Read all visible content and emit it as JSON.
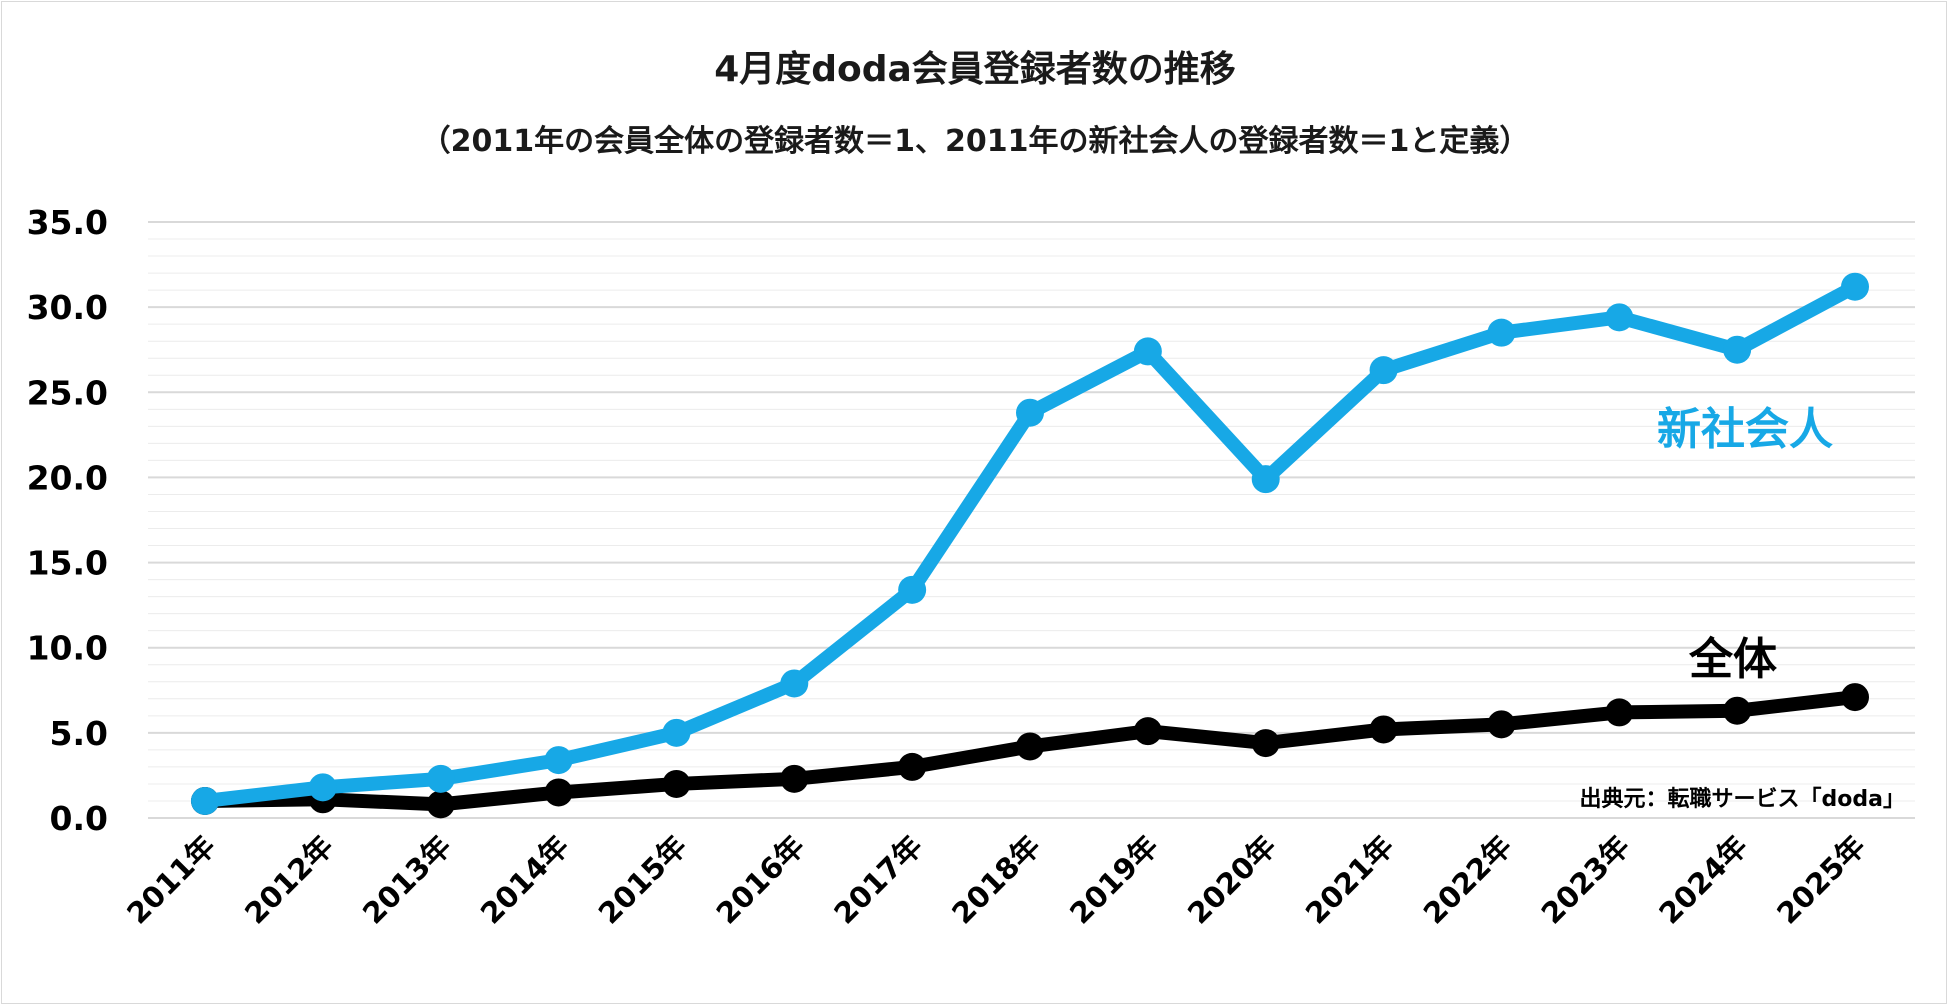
{
  "title": "4月度doda会員登録者数の推移",
  "subtitle": "（2011年の会員全体の登録者数＝1、2011年の新社会人の登録者数＝1と定義）",
  "source_note": "出典元：転職サービス「doda」",
  "colors": {
    "new_grads": "#17a8e6",
    "all": "#000000",
    "grid": "#d9d9d9",
    "minor_grid": "#ececec"
  },
  "chart_data": {
    "type": "line",
    "title": "4月度doda会員登録者数の推移",
    "subtitle": "（2011年の会員全体の登録者数＝1、2011年の新社会人の登録者数＝1と定義）",
    "categories": [
      "2011年",
      "2012年",
      "2013年",
      "2014年",
      "2015年",
      "2016年",
      "2017年",
      "2018年",
      "2019年",
      "2020年",
      "2021年",
      "2022年",
      "2023年",
      "2024年",
      "2025年"
    ],
    "series": [
      {
        "name": "新社会人",
        "color": "#17a8e6",
        "values": [
          1.0,
          1.8,
          2.3,
          3.4,
          5.0,
          7.9,
          13.4,
          23.8,
          27.4,
          19.9,
          26.3,
          28.5,
          29.4,
          27.5,
          31.2
        ]
      },
      {
        "name": "全体",
        "color": "#000000",
        "values": [
          1.0,
          1.1,
          0.8,
          1.5,
          2.0,
          2.3,
          3.0,
          4.2,
          5.1,
          4.4,
          5.2,
          5.5,
          6.2,
          6.3,
          7.1
        ]
      }
    ],
    "y_ticks": [
      "0.0",
      "5.0",
      "10.0",
      "15.0",
      "20.0",
      "25.0",
      "30.0",
      "35.0"
    ],
    "ylim": [
      0,
      35
    ],
    "grid": true,
    "legend": "inline labels"
  }
}
